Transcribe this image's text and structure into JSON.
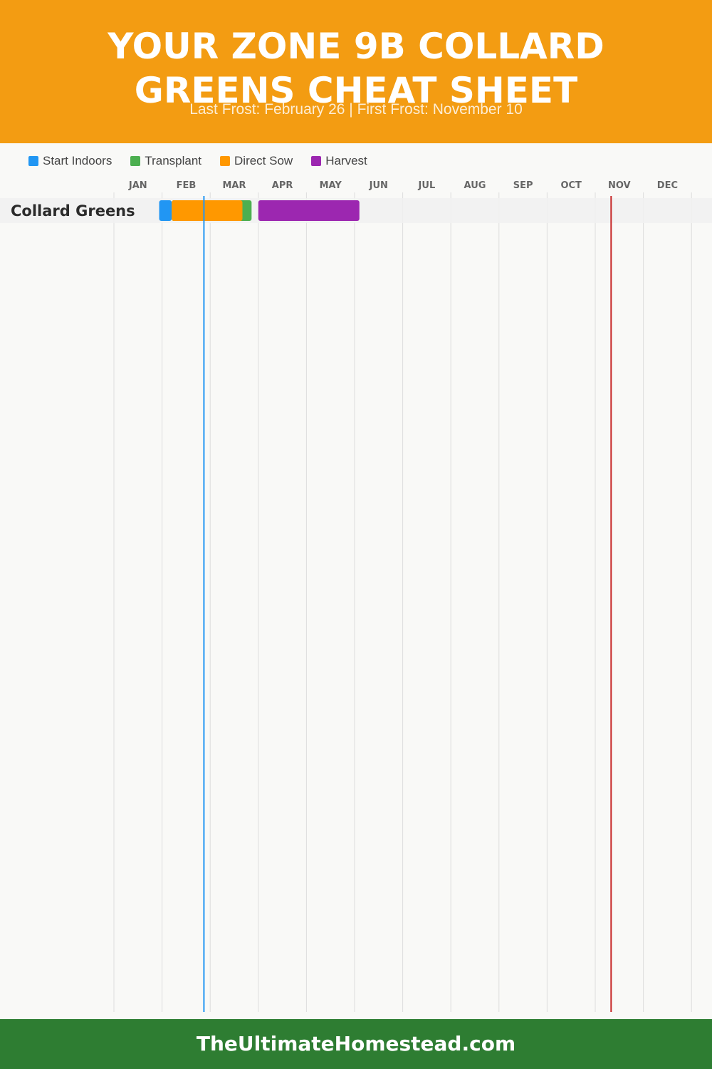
{
  "header": {
    "title": "YOUR ZONE 9B COLLARD GREENS CHEAT SHEET",
    "subtitle": "Last Frost: February 26 | First Frost: November 10"
  },
  "footer": {
    "site": "TheUltimateHomestead.com"
  },
  "colors": {
    "header_bg": "#f39c12",
    "footer_bg": "#2e7d32",
    "start_indoors": "#2196f3",
    "transplant": "#4caf50",
    "direct_sow": "#ff9800",
    "harvest": "#9c27b0",
    "last_frost_line": "#2196f3",
    "first_frost_line": "#c62828"
  },
  "chart_data": {
    "type": "gantt",
    "months": [
      "JAN",
      "FEB",
      "MAR",
      "APR",
      "MAY",
      "JUN",
      "JUL",
      "AUG",
      "SEP",
      "OCT",
      "NOV",
      "DEC"
    ],
    "legend": [
      {
        "key": "start_indoors",
        "label": "Start Indoors"
      },
      {
        "key": "transplant",
        "label": "Transplant"
      },
      {
        "key": "direct_sow",
        "label": "Direct Sow"
      },
      {
        "key": "harvest",
        "label": "Harvest"
      }
    ],
    "rows": [
      {
        "name": "Collard Greens",
        "bars": [
          {
            "key": "start_indoors",
            "start_month": 1.94,
            "end_month": 2.2
          },
          {
            "key": "transplant",
            "start_month": 2.2,
            "end_month": 3.86
          },
          {
            "key": "direct_sow",
            "start_month": 2.2,
            "end_month": 3.67
          },
          {
            "key": "harvest",
            "start_month": 4.0,
            "end_month": 6.1
          }
        ]
      }
    ],
    "frost_lines": [
      {
        "key": "last_frost",
        "month": 2.87
      },
      {
        "key": "first_frost",
        "month": 11.33
      }
    ]
  }
}
